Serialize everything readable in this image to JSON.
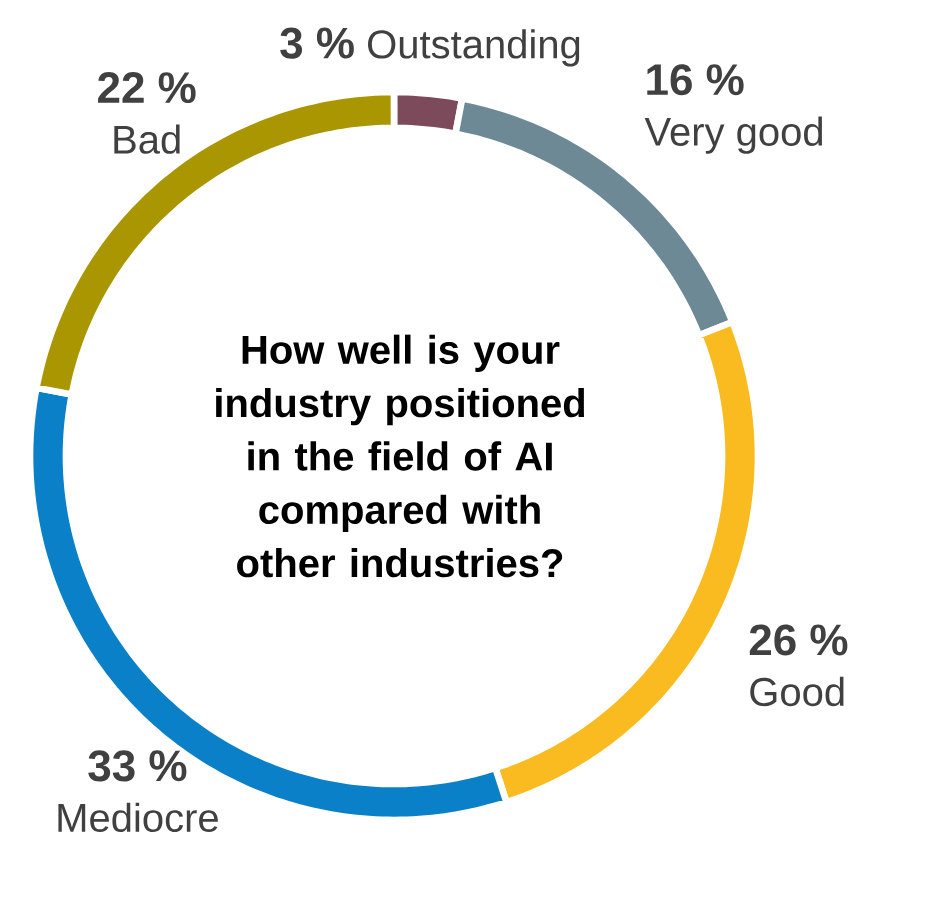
{
  "chart_data": {
    "type": "donut",
    "title": "How well is your industry positioned in the field of AI compared with other industries?",
    "categories": [
      "Outstanding",
      "Very good",
      "Good",
      "Mediocre",
      "Bad"
    ],
    "values": [
      3,
      16,
      26,
      33,
      22
    ],
    "value_labels": [
      "3 %",
      "16 %",
      "26 %",
      "33 %",
      "22 %"
    ],
    "colors": [
      "#7d4a5b",
      "#6c8995",
      "#f9bb1f",
      "#0a80c8",
      "#a99600"
    ]
  }
}
